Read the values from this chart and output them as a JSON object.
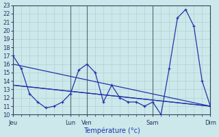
{
  "background_color": "#cce8ea",
  "grid_color": "#aacccc",
  "line_color": "#2233aa",
  "xlabel": "Température (°c)",
  "ylim": [
    10,
    23
  ],
  "yticks": [
    10,
    11,
    12,
    13,
    14,
    15,
    16,
    17,
    18,
    19,
    20,
    21,
    22,
    23
  ],
  "x_ticks_labels": [
    "Jeu",
    "Lun",
    "Ven",
    "Sam",
    "Dim"
  ],
  "x_ticks_pos": [
    0,
    7,
    9,
    17,
    24
  ],
  "xlim": [
    0,
    24
  ],
  "series1_x": [
    0,
    1,
    2,
    3,
    4,
    5,
    6,
    7,
    8,
    9,
    10,
    11,
    12,
    13,
    14,
    15,
    16,
    17,
    18,
    19,
    20,
    21,
    22,
    23,
    24
  ],
  "series1_y": [
    17,
    15.5,
    12.5,
    11.5,
    10.8,
    11.0,
    11.5,
    12.5,
    15.3,
    16.0,
    15.0,
    11.5,
    13.5,
    12.0,
    11.5,
    11.5,
    11.0,
    11.5,
    10.0,
    15.5,
    21.5,
    22.5,
    20.5,
    14.0,
    11.0
  ],
  "series2_x": [
    0,
    24
  ],
  "series2_y": [
    16.0,
    11.0
  ],
  "series3_x": [
    0,
    24
  ],
  "series3_y": [
    13.5,
    11.0
  ],
  "series4_x": [
    0,
    24
  ],
  "series4_y": [
    13.5,
    11.0
  ],
  "vlines_x": [
    0,
    7,
    9,
    17,
    24
  ],
  "tick_fontsize": 6,
  "xlabel_fontsize": 7,
  "linewidth": 0.9,
  "markersize": 3.5
}
